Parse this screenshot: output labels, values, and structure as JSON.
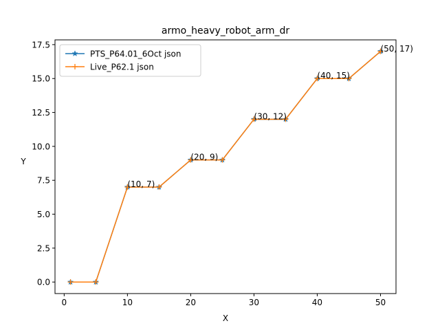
{
  "chart_data": {
    "type": "line",
    "title": "armo_heavy_robot_arm_dr",
    "xlabel": "X",
    "ylabel": "Y",
    "xlim": [
      -1.45,
      52.45
    ],
    "ylim": [
      -0.85,
      17.85
    ],
    "xticks": [
      0,
      10,
      20,
      30,
      40,
      50
    ],
    "xtick_labels": [
      "0",
      "10",
      "20",
      "30",
      "40",
      "50"
    ],
    "yticks": [
      0,
      2.5,
      5,
      7.5,
      10,
      12.5,
      15,
      17.5
    ],
    "ytick_labels": [
      "0.0",
      "2.5",
      "5.0",
      "7.5",
      "10.0",
      "12.5",
      "15.0",
      "17.5"
    ],
    "grid": false,
    "legend_position": "upper-left",
    "series": [
      {
        "name": "PTS_P64.01_6Oct json",
        "color": "#1f77b4",
        "marker": "star",
        "x": [
          1,
          5,
          10,
          15,
          20,
          25,
          30,
          35,
          40,
          45,
          50
        ],
        "y": [
          0,
          0,
          7,
          7,
          9,
          9,
          12,
          12,
          15,
          15,
          17
        ]
      },
      {
        "name": "Live_P62.1 json",
        "color": "#ff7f0e",
        "marker": "plus",
        "x": [
          1,
          5,
          10,
          15,
          20,
          25,
          30,
          35,
          40,
          45,
          50
        ],
        "y": [
          0,
          0,
          7,
          7,
          9,
          9,
          12,
          12,
          15,
          15,
          17
        ]
      }
    ],
    "annotations": [
      {
        "x": 10,
        "y": 7,
        "text": "(10, 7)"
      },
      {
        "x": 20,
        "y": 9,
        "text": "(20, 9)"
      },
      {
        "x": 30,
        "y": 12,
        "text": "(30, 12)"
      },
      {
        "x": 40,
        "y": 15,
        "text": "(40, 15)"
      },
      {
        "x": 50,
        "y": 17,
        "text": "(50, 17)"
      }
    ]
  }
}
